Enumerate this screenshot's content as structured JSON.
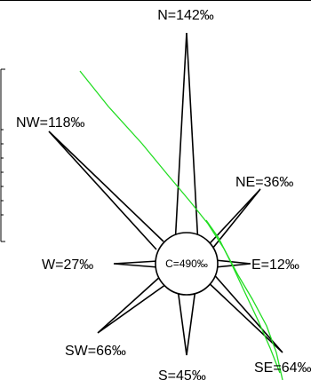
{
  "wind_rose": {
    "center_label": "C=490‰",
    "directions": [
      {
        "key": "N",
        "label": "N=142‰",
        "value": 142
      },
      {
        "key": "NE",
        "label": "NE=36‰",
        "value": 36
      },
      {
        "key": "E",
        "label": "E=12‰",
        "value": 12
      },
      {
        "key": "SE",
        "label": "SE=64‰",
        "value": 64
      },
      {
        "key": "S",
        "label": "S=45‰",
        "value": 45
      },
      {
        "key": "SW",
        "label": "SW=66‰",
        "value": 66
      },
      {
        "key": "W",
        "label": "W=27‰",
        "value": 27
      },
      {
        "key": "NW",
        "label": "NW=118‰",
        "value": 118
      }
    ]
  },
  "colors": {
    "outline": "#000000",
    "green_line": "#22dd22",
    "background": "#ffffff"
  }
}
